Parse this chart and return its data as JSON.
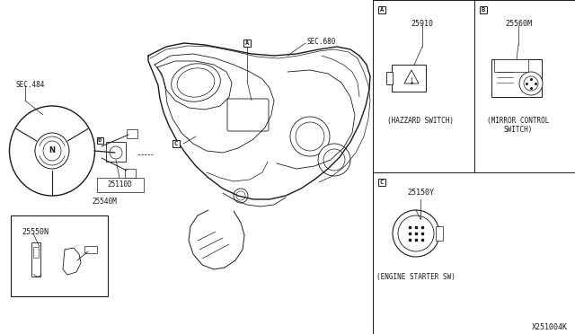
{
  "bg_color": "#ffffff",
  "line_color": "#1a1a1a",
  "fig_width": 6.4,
  "fig_height": 3.72,
  "diagram_code": "X251004K",
  "labels": {
    "sec484": "SEC.484",
    "sec680": "SEC.680",
    "p25110d": "25110D",
    "p25540m": "25540M",
    "p25550n": "25550N",
    "p25910": "25910",
    "p25560m": "25560M",
    "p25150y": "25150Y",
    "hazzard": "(HAZZARD SWITCH)",
    "mirror_l1": "(MIRROR CONTROL",
    "mirror_l2": "SWITCH)",
    "engine": "(ENGINE STARTER SW)"
  },
  "panel_A_label": "A",
  "panel_B_label": "B",
  "panel_C_label": "C"
}
